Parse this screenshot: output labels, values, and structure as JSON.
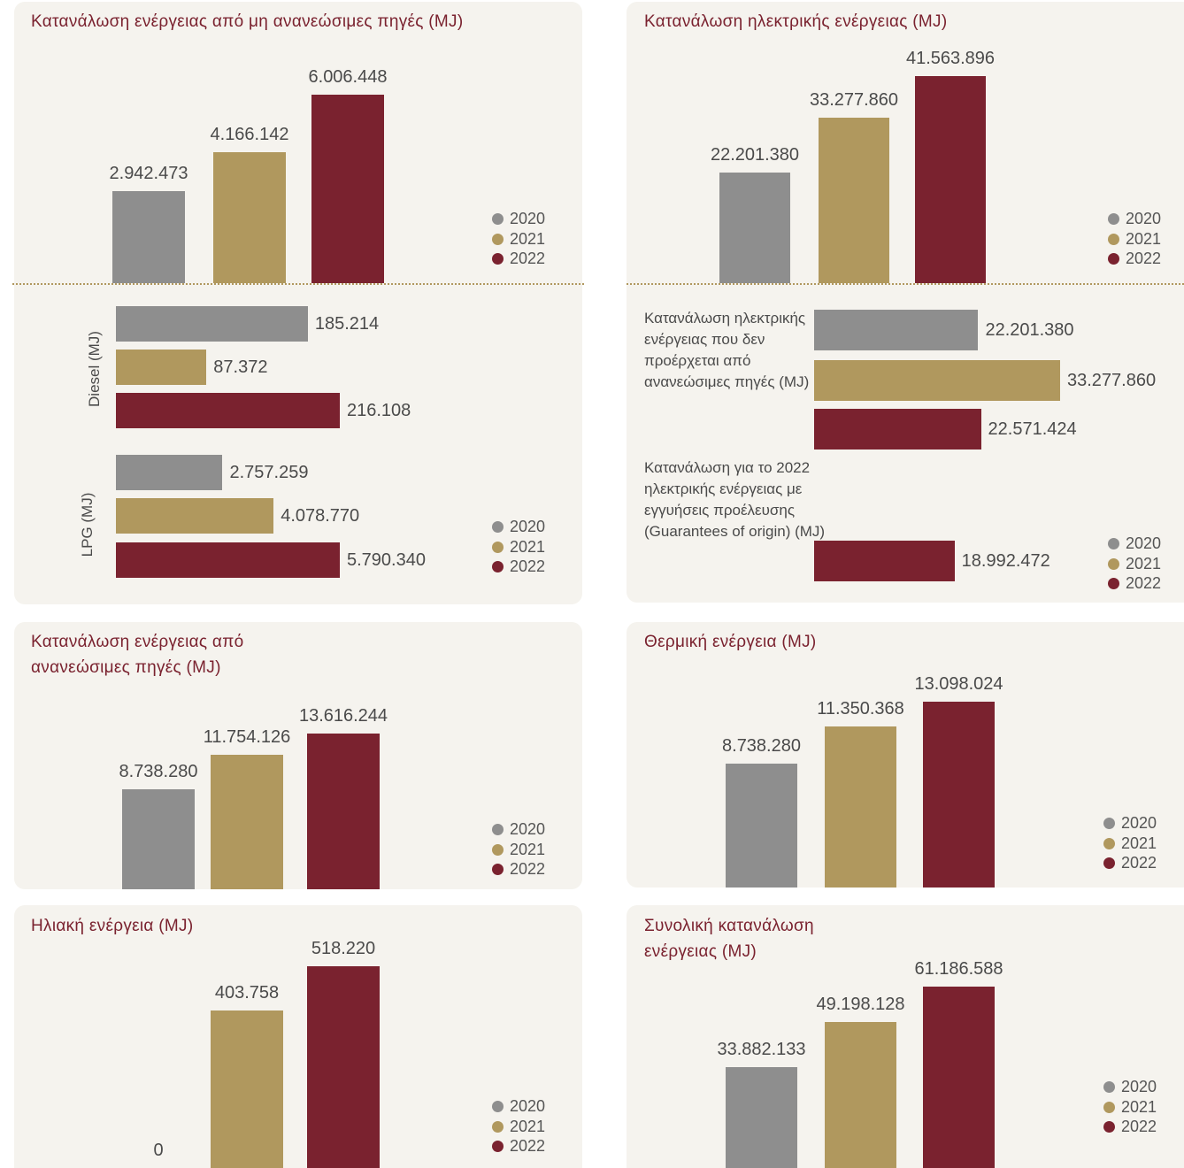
{
  "chart_data": [
    {
      "type": "bar",
      "orientation": "vertical",
      "title": "Κατανάλωση ενέργειας από μη ανανεώσιμες πηγές (MJ)",
      "series": [
        {
          "name": "2020",
          "color": "#8e8e8e",
          "values": [
            2942473
          ],
          "value_labels": [
            "2.942.473"
          ]
        },
        {
          "name": "2021",
          "color": "#b0985e",
          "values": [
            4166142
          ],
          "value_labels": [
            "4.166.142"
          ]
        },
        {
          "name": "2022",
          "color": "#7a222f",
          "values": [
            6006448
          ],
          "value_labels": [
            "6.006.448"
          ]
        }
      ]
    },
    {
      "type": "bar",
      "orientation": "horizontal",
      "categories": [
        "Diesel (MJ)",
        "LPG (MJ)"
      ],
      "series": [
        {
          "name": "2020",
          "color": "#8e8e8e",
          "values": [
            185214,
            2757259
          ],
          "value_labels": [
            "185.214",
            "2.757.259"
          ]
        },
        {
          "name": "2021",
          "color": "#b0985e",
          "values": [
            87372,
            4078770
          ],
          "value_labels": [
            "87.372",
            "4.078.770"
          ]
        },
        {
          "name": "2022",
          "color": "#7a222f",
          "values": [
            216108,
            5790340
          ],
          "value_labels": [
            "216.108",
            "5.790.340"
          ]
        }
      ]
    },
    {
      "type": "bar",
      "orientation": "vertical",
      "title": "Κατανάλωση ηλεκτρικής ενέργειας (MJ)",
      "series": [
        {
          "name": "2020",
          "color": "#8e8e8e",
          "values": [
            22201380
          ],
          "value_labels": [
            "22.201.380"
          ]
        },
        {
          "name": "2021",
          "color": "#b0985e",
          "values": [
            33277860
          ],
          "value_labels": [
            "33.277.860"
          ]
        },
        {
          "name": "2022",
          "color": "#7a222f",
          "values": [
            41563896
          ],
          "value_labels": [
            "41.563.896"
          ]
        }
      ]
    },
    {
      "type": "bar",
      "orientation": "horizontal",
      "categories": [
        "Κατανάλωση ηλεκτρικής ενέργειας που δεν προέρχεται από ανανεώσιμες πηγές (MJ)",
        "Κατανάλωση για το 2022 ηλεκτρικής ενέργειας με εγγυήσεις προέλευσης (Guarantees of origin) (MJ)"
      ],
      "series": [
        {
          "name": "2020",
          "color": "#8e8e8e",
          "values": [
            22201380,
            null
          ],
          "value_labels": [
            "22.201.380",
            null
          ]
        },
        {
          "name": "2021",
          "color": "#b0985e",
          "values": [
            33277860,
            null
          ],
          "value_labels": [
            "33.277.860",
            null
          ]
        },
        {
          "name": "2022",
          "color": "#7a222f",
          "values": [
            22571424,
            18992472
          ],
          "value_labels": [
            "22.571.424",
            "18.992.472"
          ]
        }
      ]
    },
    {
      "type": "bar",
      "orientation": "vertical",
      "title": "Κατανάλωση ενέργειας από ανανεώσιμες πηγές (MJ)",
      "series": [
        {
          "name": "2020",
          "color": "#8e8e8e",
          "values": [
            8738280
          ],
          "value_labels": [
            "8.738.280"
          ]
        },
        {
          "name": "2021",
          "color": "#b0985e",
          "values": [
            11754126
          ],
          "value_labels": [
            "11.754.126"
          ]
        },
        {
          "name": "2022",
          "color": "#7a222f",
          "values": [
            13616244
          ],
          "value_labels": [
            "13.616.244"
          ]
        }
      ]
    },
    {
      "type": "bar",
      "orientation": "vertical",
      "title": "Θερμική ενέργεια (MJ)",
      "series": [
        {
          "name": "2020",
          "color": "#8e8e8e",
          "values": [
            8738280
          ],
          "value_labels": [
            "8.738.280"
          ]
        },
        {
          "name": "2021",
          "color": "#b0985e",
          "values": [
            11350368
          ],
          "value_labels": [
            "11.350.368"
          ]
        },
        {
          "name": "2022",
          "color": "#7a222f",
          "values": [
            13098024
          ],
          "value_labels": [
            "13.098.024"
          ]
        }
      ]
    },
    {
      "type": "bar",
      "orientation": "vertical",
      "title": "Ηλιακή ενέργεια (MJ)",
      "series": [
        {
          "name": "2020",
          "color": "#8e8e8e",
          "values": [
            0
          ],
          "value_labels": [
            "0"
          ]
        },
        {
          "name": "2021",
          "color": "#b0985e",
          "values": [
            403758
          ],
          "value_labels": [
            "403.758"
          ]
        },
        {
          "name": "2022",
          "color": "#7a222f",
          "values": [
            518220
          ],
          "value_labels": [
            "518.220"
          ]
        }
      ]
    },
    {
      "type": "bar",
      "orientation": "vertical",
      "title": "Συνολική κατανάλωση ενέργειας (MJ)",
      "series": [
        {
          "name": "2020",
          "color": "#8e8e8e",
          "values": [
            33882133
          ],
          "value_labels": [
            "33.882.133"
          ]
        },
        {
          "name": "2021",
          "color": "#b0985e",
          "values": [
            49198128
          ],
          "value_labels": [
            "49.198.128"
          ]
        },
        {
          "name": "2022",
          "color": "#7a222f",
          "values": [
            61186588
          ],
          "value_labels": [
            "61.186.588"
          ]
        }
      ]
    }
  ]
}
